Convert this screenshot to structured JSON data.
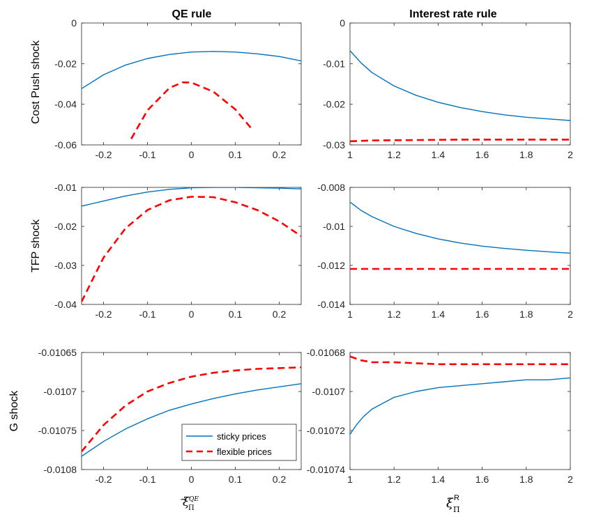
{
  "column_titles": [
    "QE rule",
    "Interest rate rule"
  ],
  "row_labels": [
    "Cost Push shock",
    "TFP shock",
    "G shock"
  ],
  "legend": {
    "sticky_label": "sticky prices",
    "flexible_label": "flexible prices"
  },
  "colors": {
    "sticky": "#0072BD",
    "flexible": "#FF0000"
  },
  "chart_data": [
    {
      "type": "line",
      "row": 0,
      "col": 0,
      "xlim": [
        -0.25,
        0.25
      ],
      "ylim": [
        -0.06,
        0
      ],
      "xticks": [
        -0.2,
        -0.1,
        0,
        0.1,
        0.2
      ],
      "xticklabels": [
        "-0.2",
        "-0.1",
        "0",
        "0.1",
        "0.2"
      ],
      "yticks": [
        0,
        -0.02,
        -0.04,
        -0.06
      ],
      "yticklabels": [
        "0",
        "-0.02",
        "-0.04",
        "-0.06"
      ],
      "series": [
        {
          "name": "sticky prices",
          "style": "solid",
          "x": [
            -0.25,
            -0.2,
            -0.15,
            -0.1,
            -0.05,
            0,
            0.05,
            0.1,
            0.15,
            0.2,
            0.25
          ],
          "y": [
            -0.0323,
            -0.0255,
            -0.0207,
            -0.0175,
            -0.0155,
            -0.0143,
            -0.014,
            -0.0143,
            -0.0152,
            -0.0165,
            -0.0187
          ]
        },
        {
          "name": "flexible prices",
          "style": "dashed",
          "x": [
            -0.137,
            -0.1,
            -0.05,
            -0.02,
            0,
            0.05,
            0.1,
            0.137
          ],
          "y": [
            -0.057,
            -0.043,
            -0.032,
            -0.0292,
            -0.0293,
            -0.0338,
            -0.0425,
            -0.052
          ]
        }
      ]
    },
    {
      "type": "line",
      "row": 0,
      "col": 1,
      "xlim": [
        1,
        2
      ],
      "ylim": [
        -0.03,
        0
      ],
      "xticks": [
        1,
        1.2,
        1.4,
        1.6,
        1.8,
        2
      ],
      "xticklabels": [
        "1",
        "1.2",
        "1.4",
        "1.6",
        "1.8",
        "2"
      ],
      "yticks": [
        0,
        -0.01,
        -0.02,
        -0.03
      ],
      "yticklabels": [
        "0",
        "-0.01",
        "-0.02",
        "-0.03"
      ],
      "series": [
        {
          "name": "sticky prices",
          "style": "solid",
          "x": [
            1,
            1.05,
            1.1,
            1.2,
            1.3,
            1.4,
            1.5,
            1.6,
            1.7,
            1.8,
            1.9,
            2
          ],
          "y": [
            -0.0068,
            -0.0098,
            -0.0122,
            -0.0155,
            -0.0178,
            -0.0195,
            -0.0208,
            -0.0218,
            -0.0226,
            -0.0232,
            -0.0236,
            -0.024
          ]
        },
        {
          "name": "flexible prices",
          "style": "dashed",
          "x": [
            1,
            1.1,
            1.3,
            1.5,
            2
          ],
          "y": [
            -0.0291,
            -0.0289,
            -0.0288,
            -0.0287,
            -0.0287
          ]
        }
      ]
    },
    {
      "type": "line",
      "row": 1,
      "col": 0,
      "xlim": [
        -0.25,
        0.25
      ],
      "ylim": [
        -0.04,
        -0.01
      ],
      "xticks": [
        -0.2,
        -0.1,
        0,
        0.1,
        0.2
      ],
      "xticklabels": [
        "-0.2",
        "-0.1",
        "0",
        "0.1",
        "0.2"
      ],
      "yticks": [
        -0.01,
        -0.02,
        -0.03,
        -0.04
      ],
      "yticklabels": [
        "-0.01",
        "-0.02",
        "-0.03",
        "-0.04"
      ],
      "series": [
        {
          "name": "sticky prices",
          "style": "solid",
          "x": [
            -0.25,
            -0.2,
            -0.15,
            -0.1,
            -0.05,
            0,
            0.05,
            0.1,
            0.15,
            0.2,
            0.25
          ],
          "y": [
            -0.0148,
            -0.0135,
            -0.0122,
            -0.0112,
            -0.0105,
            -0.0101,
            -0.01,
            -0.01,
            -0.0101,
            -0.0102,
            -0.0104
          ]
        },
        {
          "name": "flexible prices",
          "style": "dashed",
          "x": [
            -0.25,
            -0.22,
            -0.2,
            -0.15,
            -0.1,
            -0.05,
            0,
            0.05,
            0.1,
            0.15,
            0.2,
            0.25
          ],
          "y": [
            -0.0393,
            -0.0325,
            -0.028,
            -0.0205,
            -0.0158,
            -0.0133,
            -0.0124,
            -0.0125,
            -0.0138,
            -0.0158,
            -0.0187,
            -0.0225
          ]
        }
      ]
    },
    {
      "type": "line",
      "row": 1,
      "col": 1,
      "xlim": [
        1,
        2
      ],
      "ylim": [
        -0.014,
        -0.008
      ],
      "xticks": [
        1,
        1.2,
        1.4,
        1.6,
        1.8,
        2
      ],
      "xticklabels": [
        "1",
        "1.2",
        "1.4",
        "1.6",
        "1.8",
        "2"
      ],
      "yticks": [
        -0.008,
        -0.01,
        -0.012,
        -0.014
      ],
      "yticklabels": [
        "-0.008",
        "-0.01",
        "-0.012",
        "-0.014"
      ],
      "series": [
        {
          "name": "sticky prices",
          "style": "solid",
          "x": [
            1,
            1.05,
            1.1,
            1.2,
            1.3,
            1.4,
            1.5,
            1.6,
            1.7,
            1.8,
            1.9,
            2
          ],
          "y": [
            -0.00875,
            -0.00918,
            -0.0095,
            -0.01,
            -0.01036,
            -0.01064,
            -0.01085,
            -0.01101,
            -0.01113,
            -0.01122,
            -0.0113,
            -0.01137
          ]
        },
        {
          "name": "flexible prices",
          "style": "dashed",
          "x": [
            1,
            1.5,
            2
          ],
          "y": [
            -0.01218,
            -0.01218,
            -0.01218
          ]
        }
      ]
    },
    {
      "type": "line",
      "row": 2,
      "col": 0,
      "xlim": [
        -0.25,
        0.25
      ],
      "ylim": [
        -0.0108,
        -0.01065
      ],
      "xticks": [
        -0.2,
        -0.1,
        0,
        0.1,
        0.2
      ],
      "xticklabels": [
        "-0.2",
        "-0.1",
        "0",
        "0.1",
        "0.2"
      ],
      "yticks": [
        -0.01065,
        -0.0107,
        -0.01075,
        -0.0108
      ],
      "yticklabels": [
        "-0.01065",
        "-0.0107",
        "-0.01075",
        "-0.0108"
      ],
      "series": [
        {
          "name": "sticky prices",
          "style": "solid",
          "x": [
            -0.25,
            -0.2,
            -0.15,
            -0.1,
            -0.05,
            0,
            0.05,
            0.1,
            0.15,
            0.2,
            0.25
          ],
          "y": [
            -0.010783,
            -0.010764,
            -0.010748,
            -0.010735,
            -0.010724,
            -0.010716,
            -0.010709,
            -0.010703,
            -0.010698,
            -0.010694,
            -0.01069
          ]
        },
        {
          "name": "flexible prices",
          "style": "dashed",
          "x": [
            -0.25,
            -0.2,
            -0.15,
            -0.1,
            -0.05,
            0,
            0.05,
            0.1,
            0.15,
            0.2,
            0.25
          ],
          "y": [
            -0.010777,
            -0.010743,
            -0.010718,
            -0.0107,
            -0.010689,
            -0.010681,
            -0.010676,
            -0.010673,
            -0.010671,
            -0.01067,
            -0.010669
          ]
        }
      ]
    },
    {
      "type": "line",
      "row": 2,
      "col": 1,
      "xlim": [
        1,
        2
      ],
      "ylim": [
        -0.01074,
        -0.01068
      ],
      "xticks": [
        1,
        1.2,
        1.4,
        1.6,
        1.8,
        2
      ],
      "xticklabels": [
        "1",
        "1.2",
        "1.4",
        "1.6",
        "1.8",
        "2"
      ],
      "yticks": [
        -0.01068,
        -0.0107,
        -0.01072,
        -0.01074
      ],
      "yticklabels": [
        "-0.01068",
        "-0.0107",
        "-0.01072",
        "-0.01074"
      ],
      "series": [
        {
          "name": "sticky prices",
          "style": "solid",
          "x": [
            1,
            1.03,
            1.06,
            1.1,
            1.15,
            1.2,
            1.3,
            1.4,
            1.5,
            1.6,
            1.7,
            1.8,
            1.9,
            2
          ],
          "y": [
            -0.010722,
            -0.010717,
            -0.010713,
            -0.010709,
            -0.010706,
            -0.010703,
            -0.0107,
            -0.010698,
            -0.010697,
            -0.010696,
            -0.010695,
            -0.010694,
            -0.010694,
            -0.010693
          ]
        },
        {
          "name": "flexible prices",
          "style": "dashed",
          "x": [
            1,
            1.05,
            1.1,
            1.2,
            1.4,
            1.6,
            2
          ],
          "y": [
            -0.010682,
            -0.010684,
            -0.010685,
            -0.010685,
            -0.010686,
            -0.010686,
            -0.010686
          ]
        }
      ]
    }
  ]
}
